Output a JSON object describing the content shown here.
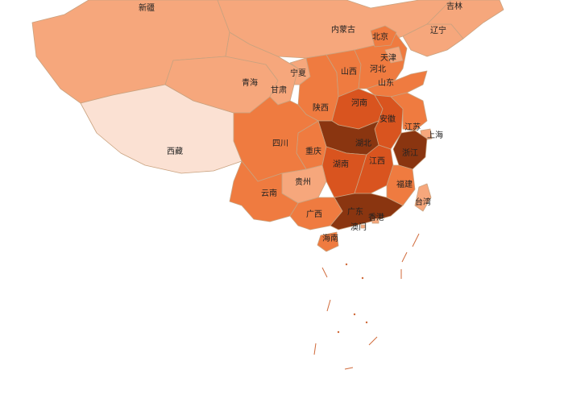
{
  "colors": {
    "background": "#ffffff",
    "level_lightest": "#fbe1d3",
    "level_light": "#f6a77c",
    "level_mid": "#ef7b40",
    "level_high": "#d9541f",
    "level_highest": "#8a3510",
    "border": "#c9a27f"
  },
  "regions": [
    {
      "id": "xinjiang",
      "name": "新疆",
      "level": "light"
    },
    {
      "id": "xizang",
      "name": "西藏",
      "level": "lightest"
    },
    {
      "id": "qinghai",
      "name": "青海",
      "level": "light"
    },
    {
      "id": "gansu",
      "name": "甘肃",
      "level": "light"
    },
    {
      "id": "neimenggu",
      "name": "内蒙古",
      "level": "light"
    },
    {
      "id": "ningxia",
      "name": "宁夏",
      "level": "light"
    },
    {
      "id": "shaanxi",
      "name": "陕西",
      "level": "mid"
    },
    {
      "id": "shanxi",
      "name": "山西",
      "level": "mid"
    },
    {
      "id": "hebei",
      "name": "河北",
      "level": "mid"
    },
    {
      "id": "beijing",
      "name": "北京",
      "level": "mid"
    },
    {
      "id": "tianjin",
      "name": "天津",
      "level": "light"
    },
    {
      "id": "shandong",
      "name": "山东",
      "level": "mid"
    },
    {
      "id": "liaoning",
      "name": "辽宁",
      "level": "light"
    },
    {
      "id": "jilin",
      "name": "吉林",
      "level": "light"
    },
    {
      "id": "henan",
      "name": "河南",
      "level": "high"
    },
    {
      "id": "anhui",
      "name": "安徽",
      "level": "high"
    },
    {
      "id": "jiangsu",
      "name": "江苏",
      "level": "mid"
    },
    {
      "id": "shanghai",
      "name": "上海",
      "level": "light"
    },
    {
      "id": "zhejiang",
      "name": "浙江",
      "level": "highest"
    },
    {
      "id": "hubei",
      "name": "湖北",
      "level": "highest"
    },
    {
      "id": "chongqing",
      "name": "重庆",
      "level": "mid"
    },
    {
      "id": "sichuan",
      "name": "四川",
      "level": "mid"
    },
    {
      "id": "guizhou",
      "name": "贵州",
      "level": "light"
    },
    {
      "id": "yunnan",
      "name": "云南",
      "level": "mid"
    },
    {
      "id": "hunan",
      "name": "湖南",
      "level": "high"
    },
    {
      "id": "jiangxi",
      "name": "江西",
      "level": "high"
    },
    {
      "id": "fujian",
      "name": "福建",
      "level": "mid"
    },
    {
      "id": "guangxi",
      "name": "广西",
      "level": "mid"
    },
    {
      "id": "guangdong",
      "name": "广东",
      "level": "highest"
    },
    {
      "id": "hainan",
      "name": "海南",
      "level": "mid"
    },
    {
      "id": "taiwan",
      "name": "台湾",
      "level": "light"
    },
    {
      "id": "xianggang",
      "name": "香港",
      "level": "light"
    },
    {
      "id": "aomen",
      "name": "澳门",
      "level": "light"
    }
  ]
}
